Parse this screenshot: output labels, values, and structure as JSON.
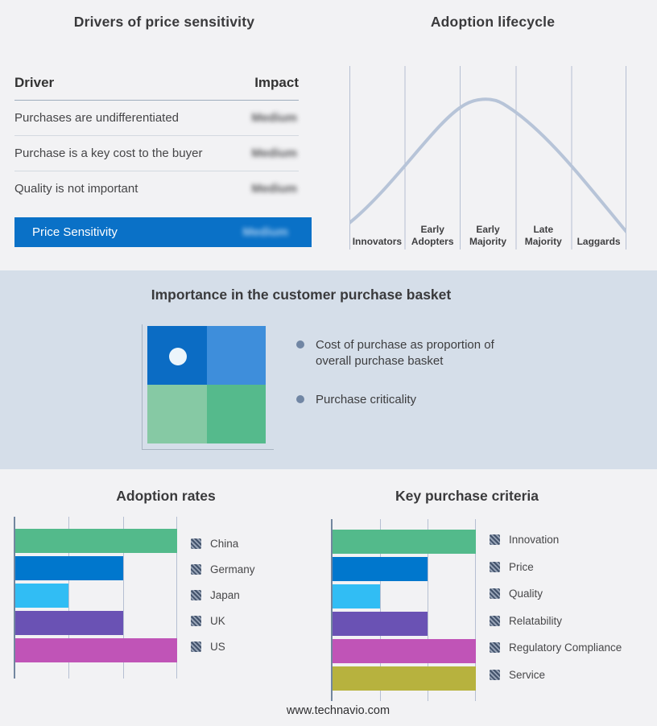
{
  "page": {
    "background": "#f2f2f4",
    "footer_url": "www.technavio.com"
  },
  "drivers_panel": {
    "title": "Drivers of price sensitivity",
    "columns": {
      "driver": "Driver",
      "impact": "Impact"
    },
    "rows": [
      {
        "driver": "Purchases are undifferentiated",
        "impact": "Medium"
      },
      {
        "driver": "Purchase is a key cost to the buyer",
        "impact": "Medium"
      },
      {
        "driver": "Quality is not important",
        "impact": "Medium"
      }
    ],
    "impact_values_blurred": true,
    "highlight_row": {
      "driver": "Price Sensitivity",
      "impact": "Medium",
      "background": "#0a71c7"
    }
  },
  "lifecycle_panel": {
    "title": "Adoption lifecycle",
    "stages": [
      "Innovators",
      "Early Adopters",
      "Early Majority",
      "Late Majority",
      "Laggards"
    ],
    "curve_color": "#b7c4d8"
  },
  "basket_panel": {
    "title": "Importance in the customer purchase basket",
    "background": "#d5dee9",
    "bullets": [
      "Cost of purchase as proportion of overall purchase basket",
      "Purchase criticality"
    ],
    "bullet_dot_color": "#7186a4",
    "quadrant": {
      "top_left": "#0b6cc4",
      "top_right": "#3e8edb",
      "bottom_left": "#86c9a4",
      "bottom_right": "#55ba8c",
      "marker_dot_color": "#ecf5fb"
    }
  },
  "chart_data": [
    {
      "type": "bar",
      "orientation": "horizontal",
      "title": "Adoption rates",
      "categories": [
        "China",
        "Germany",
        "Japan",
        "UK",
        "US"
      ],
      "values": [
        3,
        2,
        1,
        2,
        3
      ],
      "xlim": [
        0,
        3
      ],
      "grid": true,
      "legend_position": "right",
      "colors": [
        "#53ba8b",
        "#0077cd",
        "#31bdf4",
        "#6a52b4",
        "#c054b7"
      ]
    },
    {
      "type": "bar",
      "orientation": "horizontal",
      "title": "Key purchase criteria",
      "categories": [
        "Innovation",
        "Price",
        "Quality",
        "Relatability",
        "Regulatory Compliance",
        "Service"
      ],
      "values": [
        3,
        2,
        1,
        2,
        3,
        3
      ],
      "xlim": [
        0,
        3
      ],
      "grid": true,
      "legend_position": "right",
      "colors": [
        "#53ba8b",
        "#0077cd",
        "#31bdf4",
        "#6a52b4",
        "#c054b7",
        "#b7b23e"
      ]
    }
  ],
  "lifecycle_curve_note": "bell curve peaking in Early Majority segment"
}
